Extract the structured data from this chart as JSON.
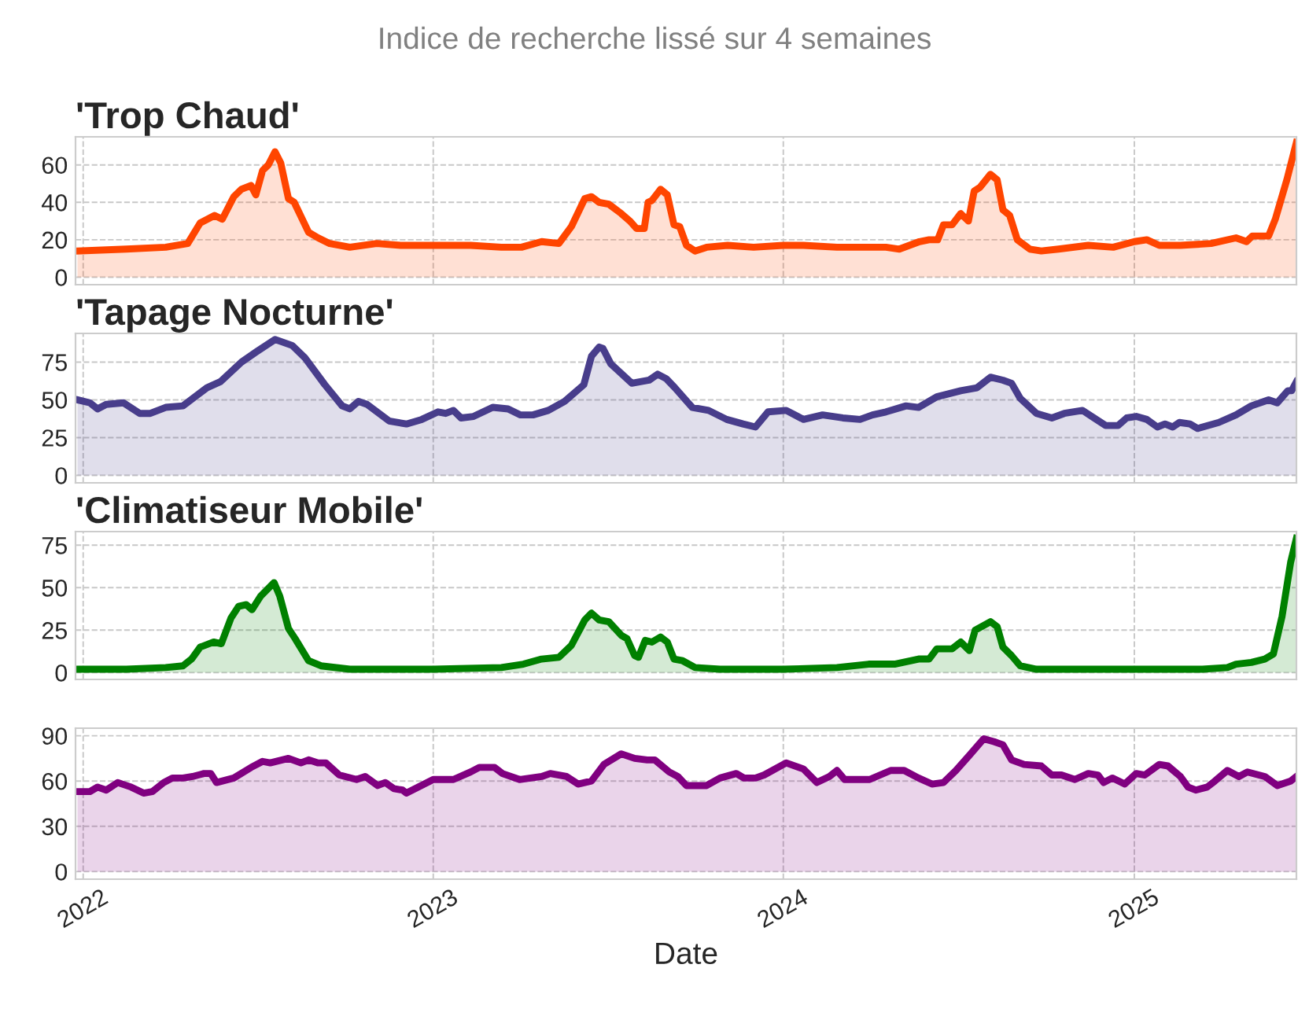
{
  "chart_data": [
    {
      "type": "area",
      "title": "'Trop Chaud'",
      "annotations": [
        "Indice de recherche lissé sur 4 semaines"
      ],
      "grid": true,
      "tick_labels": "y",
      "xlim": [
        "2021-12-24",
        "2025-06-19"
      ],
      "ylim": [
        -4,
        75
      ],
      "yticks": [
        0,
        20,
        40,
        60
      ],
      "xticks": [
        {
          "value": "2022-01-01",
          "label": null
        },
        {
          "value": "2023-01-01",
          "label": null
        },
        {
          "value": "2024-01-01",
          "label": null
        },
        {
          "value": "2025-01-01",
          "label": null
        }
      ],
      "x": [
        "2021-12-26",
        "2022-02-15",
        "2022-03-28",
        "2022-04-20",
        "2022-05-03",
        "2022-05-18",
        "2022-05-26",
        "2022-06-07",
        "2022-06-15",
        "2022-06-25",
        "2022-06-30",
        "2022-07-07",
        "2022-07-13",
        "2022-07-20",
        "2022-07-26",
        "2022-08-03",
        "2022-08-09",
        "2022-08-24",
        "2022-09-03",
        "2022-09-15",
        "2022-10-06",
        "2022-11-03",
        "2022-11-28",
        "2023-01-01",
        "2023-02-09",
        "2023-03-13",
        "2023-04-03",
        "2023-04-24",
        "2023-05-12",
        "2023-05-25",
        "2023-06-08",
        "2023-06-15",
        "2023-06-23",
        "2023-07-03",
        "2023-07-16",
        "2023-07-25",
        "2023-08-01",
        "2023-08-09",
        "2023-08-13",
        "2023-08-17",
        "2023-08-26",
        "2023-09-02",
        "2023-09-09",
        "2023-09-15",
        "2023-09-22",
        "2023-10-01",
        "2023-10-13",
        "2023-11-04",
        "2023-12-01",
        "2024-01-01",
        "2024-01-22",
        "2024-02-26",
        "2024-03-22",
        "2024-04-17",
        "2024-05-01",
        "2024-05-22",
        "2024-06-01",
        "2024-06-10",
        "2024-06-16",
        "2024-06-25",
        "2024-07-04",
        "2024-07-12",
        "2024-07-18",
        "2024-07-24",
        "2024-08-04",
        "2024-08-11",
        "2024-08-17",
        "2024-08-24",
        "2024-09-01",
        "2024-09-14",
        "2024-09-26",
        "2024-10-14",
        "2024-11-14",
        "2024-12-10",
        "2025-01-01",
        "2025-01-14",
        "2025-01-27",
        "2025-02-18",
        "2025-03-22",
        "2025-04-17",
        "2025-04-28",
        "2025-05-04",
        "2025-05-21",
        "2025-05-28",
        "2025-06-09",
        "2025-06-19"
      ],
      "series": [
        {
          "color": "#ff4500",
          "values": [
            14,
            15,
            16,
            18,
            29,
            33,
            31,
            43,
            47,
            49,
            44,
            57,
            60,
            67,
            61,
            42,
            40,
            24,
            21,
            18,
            16,
            18,
            17,
            17,
            17,
            16,
            16,
            19,
            18,
            27,
            42,
            43,
            40,
            39,
            34,
            30,
            26,
            26,
            40,
            41,
            47,
            44,
            28,
            27,
            17,
            14,
            16,
            17,
            16,
            17,
            17,
            16,
            16,
            16,
            15,
            19,
            20,
            20,
            28,
            28,
            34,
            30,
            46,
            48,
            55,
            52,
            36,
            33,
            20,
            15,
            14,
            15,
            17,
            16,
            19,
            20,
            17,
            17,
            18,
            21,
            19,
            22,
            22,
            31,
            52,
            72
          ]
        }
      ]
    },
    {
      "type": "area",
      "title": "'Tapage Nocturne'",
      "grid": true,
      "tick_labels": "y",
      "xlim": [
        "2021-12-24",
        "2025-06-19"
      ],
      "ylim": [
        -5,
        94
      ],
      "yticks": [
        0,
        25,
        50,
        75
      ],
      "xticks": [
        {
          "value": "2022-01-01",
          "label": null
        },
        {
          "value": "2023-01-01",
          "label": null
        },
        {
          "value": "2024-01-01",
          "label": null
        },
        {
          "value": "2025-01-01",
          "label": null
        }
      ],
      "x": [
        "2021-12-26",
        "2022-01-08",
        "2022-01-16",
        "2022-01-25",
        "2022-02-12",
        "2022-03-01",
        "2022-03-12",
        "2022-03-28",
        "2022-04-15",
        "2022-05-10",
        "2022-05-24",
        "2022-06-15",
        "2022-07-01",
        "2022-07-20",
        "2022-08-07",
        "2022-08-20",
        "2022-09-10",
        "2022-09-28",
        "2022-10-06",
        "2022-10-15",
        "2022-10-24",
        "2022-11-16",
        "2022-12-04",
        "2022-12-20",
        "2023-01-06",
        "2023-01-14",
        "2023-01-22",
        "2023-01-30",
        "2023-02-12",
        "2023-03-04",
        "2023-03-20",
        "2023-04-02",
        "2023-04-15",
        "2023-05-01",
        "2023-05-18",
        "2023-06-07",
        "2023-06-15",
        "2023-06-23",
        "2023-06-27",
        "2023-07-05",
        "2023-07-27",
        "2023-08-14",
        "2023-08-23",
        "2023-09-01",
        "2023-09-10",
        "2023-09-28",
        "2023-10-15",
        "2023-11-03",
        "2023-11-20",
        "2023-12-03",
        "2023-12-16",
        "2024-01-04",
        "2024-01-22",
        "2024-02-11",
        "2024-03-03",
        "2024-03-21",
        "2024-04-03",
        "2024-04-17",
        "2024-05-08",
        "2024-05-21",
        "2024-06-09",
        "2024-07-04",
        "2024-07-21",
        "2024-08-04",
        "2024-08-17",
        "2024-08-26",
        "2024-09-04",
        "2024-09-21",
        "2024-10-07",
        "2024-10-20",
        "2024-11-08",
        "2024-11-20",
        "2024-12-02",
        "2024-12-15",
        "2024-12-24",
        "2025-01-03",
        "2025-01-14",
        "2025-01-25",
        "2025-02-02",
        "2025-02-10",
        "2025-02-17",
        "2025-02-28",
        "2025-03-08",
        "2025-03-30",
        "2025-04-17",
        "2025-05-03",
        "2025-05-21",
        "2025-05-30",
        "2025-06-10",
        "2025-06-14",
        "2025-06-19"
      ],
      "series": [
        {
          "color": "#483d8b",
          "values": [
            50,
            48,
            44,
            47,
            48,
            41,
            41,
            45,
            46,
            58,
            62,
            75,
            82,
            90,
            86,
            78,
            60,
            46,
            44,
            49,
            47,
            36,
            34,
            37,
            42,
            41,
            43,
            38,
            39,
            45,
            44,
            40,
            40,
            43,
            49,
            60,
            79,
            85,
            84,
            74,
            61,
            63,
            67,
            64,
            58,
            45,
            43,
            37,
            34,
            32,
            42,
            43,
            37,
            40,
            38,
            37,
            40,
            42,
            46,
            45,
            52,
            56,
            58,
            65,
            63,
            61,
            51,
            41,
            38,
            41,
            43,
            38,
            33,
            33,
            38,
            39,
            37,
            32,
            34,
            32,
            35,
            34,
            31,
            35,
            40,
            46,
            50,
            48,
            56,
            56,
            62
          ]
        }
      ]
    },
    {
      "type": "area",
      "title": "'Climatiseur Mobile'",
      "grid": true,
      "tick_labels": "y",
      "xlim": [
        "2021-12-24",
        "2025-06-19"
      ],
      "ylim": [
        -4,
        83
      ],
      "yticks": [
        0,
        25,
        50,
        75
      ],
      "xticks": [
        {
          "value": "2022-01-01",
          "label": null
        },
        {
          "value": "2023-01-01",
          "label": null
        },
        {
          "value": "2024-01-01",
          "label": null
        },
        {
          "value": "2025-01-01",
          "label": null
        }
      ],
      "x": [
        "2021-12-26",
        "2022-02-15",
        "2022-03-28",
        "2022-04-15",
        "2022-04-24",
        "2022-05-03",
        "2022-05-17",
        "2022-05-25",
        "2022-06-04",
        "2022-06-12",
        "2022-06-20",
        "2022-06-26",
        "2022-07-05",
        "2022-07-19",
        "2022-07-25",
        "2022-08-03",
        "2022-08-10",
        "2022-08-24",
        "2022-09-06",
        "2022-10-06",
        "2023-01-01",
        "2023-03-13",
        "2023-04-05",
        "2023-04-24",
        "2023-05-12",
        "2023-05-25",
        "2023-06-08",
        "2023-06-15",
        "2023-06-23",
        "2023-07-03",
        "2023-07-16",
        "2023-07-22",
        "2023-07-30",
        "2023-08-03",
        "2023-08-10",
        "2023-08-17",
        "2023-08-26",
        "2023-09-02",
        "2023-09-09",
        "2023-09-18",
        "2023-10-01",
        "2023-10-27",
        "2024-01-01",
        "2024-02-26",
        "2024-03-30",
        "2024-04-26",
        "2024-05-21",
        "2024-06-01",
        "2024-06-09",
        "2024-06-25",
        "2024-07-04",
        "2024-07-13",
        "2024-07-19",
        "2024-08-04",
        "2024-08-11",
        "2024-08-17",
        "2024-08-26",
        "2024-09-04",
        "2024-09-21",
        "2025-01-01",
        "2025-03-13",
        "2025-04-08",
        "2025-04-17",
        "2025-05-03",
        "2025-05-17",
        "2025-05-26",
        "2025-06-04",
        "2025-06-13",
        "2025-06-19"
      ],
      "series": [
        {
          "color": "#008000",
          "values": [
            2,
            2,
            3,
            4,
            8,
            15,
            18,
            17,
            32,
            39,
            40,
            37,
            45,
            53,
            45,
            26,
            20,
            7,
            4,
            2,
            2,
            3,
            5,
            8,
            9,
            16,
            31,
            35,
            31,
            30,
            22,
            20,
            10,
            9,
            19,
            18,
            21,
            18,
            8,
            7,
            3,
            2,
            2,
            3,
            5,
            5,
            8,
            8,
            14,
            14,
            18,
            13,
            25,
            30,
            27,
            15,
            10,
            4,
            2,
            2,
            2,
            3,
            5,
            6,
            8,
            11,
            33,
            65,
            79
          ]
        }
      ]
    },
    {
      "type": "area",
      "xlabel": "Date",
      "grid": true,
      "xlim": [
        "2021-12-24",
        "2025-06-19"
      ],
      "ylim": [
        -5,
        95
      ],
      "yticks": [
        0,
        30,
        60,
        90
      ],
      "xticks": [
        {
          "value": "2022-01-01",
          "label": "2022"
        },
        {
          "value": "2023-01-01",
          "label": "2023"
        },
        {
          "value": "2024-01-01",
          "label": "2024"
        },
        {
          "value": "2025-01-01",
          "label": "2025"
        }
      ],
      "x": [
        "2021-12-26",
        "2022-01-08",
        "2022-01-16",
        "2022-01-25",
        "2022-02-06",
        "2022-02-20",
        "2022-03-05",
        "2022-03-14",
        "2022-03-26",
        "2022-04-04",
        "2022-04-15",
        "2022-04-25",
        "2022-05-07",
        "2022-05-14",
        "2022-05-20",
        "2022-06-07",
        "2022-06-25",
        "2022-07-07",
        "2022-07-15",
        "2022-08-03",
        "2022-08-16",
        "2022-08-24",
        "2022-09-03",
        "2022-09-11",
        "2022-09-25",
        "2022-10-13",
        "2022-10-22",
        "2022-11-04",
        "2022-11-12",
        "2022-11-21",
        "2022-11-30",
        "2022-12-04",
        "2023-01-01",
        "2023-01-22",
        "2023-02-09",
        "2023-02-18",
        "2023-03-06",
        "2023-03-14",
        "2023-04-01",
        "2023-04-24",
        "2023-05-03",
        "2023-05-20",
        "2023-06-01",
        "2023-06-15",
        "2023-06-28",
        "2023-07-16",
        "2023-07-30",
        "2023-08-12",
        "2023-08-20",
        "2023-09-04",
        "2023-09-13",
        "2023-09-22",
        "2023-10-13",
        "2023-10-27",
        "2023-11-13",
        "2023-11-21",
        "2023-12-03",
        "2023-12-12",
        "2024-01-04",
        "2024-01-22",
        "2024-02-05",
        "2024-02-18",
        "2024-02-26",
        "2024-03-05",
        "2024-03-14",
        "2024-03-31",
        "2024-04-22",
        "2024-05-06",
        "2024-05-21",
        "2024-06-04",
        "2024-06-16",
        "2024-06-29",
        "2024-07-13",
        "2024-07-28",
        "2024-08-08",
        "2024-08-17",
        "2024-08-26",
        "2024-09-08",
        "2024-09-26",
        "2024-10-07",
        "2024-10-17",
        "2024-10-31",
        "2024-11-14",
        "2024-11-24",
        "2024-11-30",
        "2024-12-09",
        "2024-12-22",
        "2025-01-03",
        "2025-01-12",
        "2025-01-27",
        "2025-02-05",
        "2025-02-18",
        "2025-02-26",
        "2025-03-06",
        "2025-03-18",
        "2025-03-26",
        "2025-04-08",
        "2025-04-20",
        "2025-04-29",
        "2025-05-17",
        "2025-05-30",
        "2025-06-13",
        "2025-06-19"
      ],
      "series": [
        {
          "color": "#800080",
          "values": [
            53,
            53,
            56,
            54,
            59,
            56,
            52,
            53,
            59,
            62,
            62,
            63,
            65,
            65,
            59,
            62,
            69,
            73,
            72,
            75,
            72,
            74,
            72,
            72,
            64,
            61,
            63,
            57,
            59,
            55,
            54,
            52,
            61,
            61,
            66,
            69,
            69,
            65,
            61,
            63,
            65,
            63,
            58,
            60,
            71,
            78,
            75,
            74,
            74,
            66,
            63,
            57,
            57,
            62,
            65,
            62,
            62,
            64,
            72,
            68,
            59,
            63,
            67,
            61,
            61,
            61,
            67,
            67,
            62,
            58,
            59,
            67,
            77,
            88,
            86,
            84,
            74,
            71,
            70,
            64,
            64,
            61,
            65,
            64,
            59,
            62,
            58,
            65,
            64,
            71,
            70,
            63,
            56,
            54,
            56,
            60,
            67,
            63,
            66,
            63,
            57,
            60,
            63
          ]
        }
      ]
    }
  ]
}
